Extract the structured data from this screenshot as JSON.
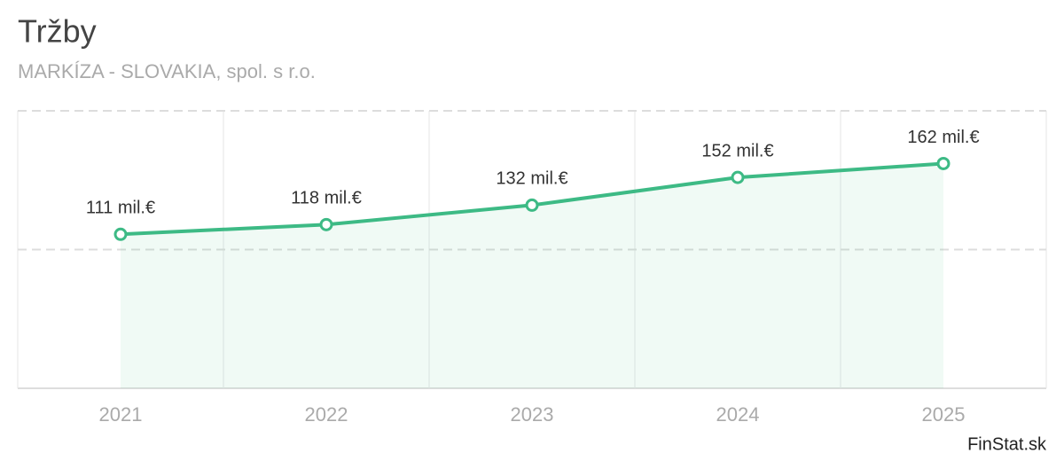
{
  "chart_data": {
    "type": "line",
    "title": "Tržby",
    "subtitle": "MARKÍZA - SLOVAKIA, spol. s r.o.",
    "categories": [
      "2021",
      "2022",
      "2023",
      "2024",
      "2025"
    ],
    "values": [
      111,
      118,
      132,
      152,
      162
    ],
    "value_labels": [
      "111 mil.€",
      "118 mil.€",
      "132 mil.€",
      "152 mil.€",
      "162 mil.€"
    ],
    "color": "#3dba85",
    "ylim": [
      0,
      200
    ],
    "yticks": [
      100,
      200
    ],
    "grid": true
  },
  "footer": {
    "brand": "FinStat.sk"
  }
}
